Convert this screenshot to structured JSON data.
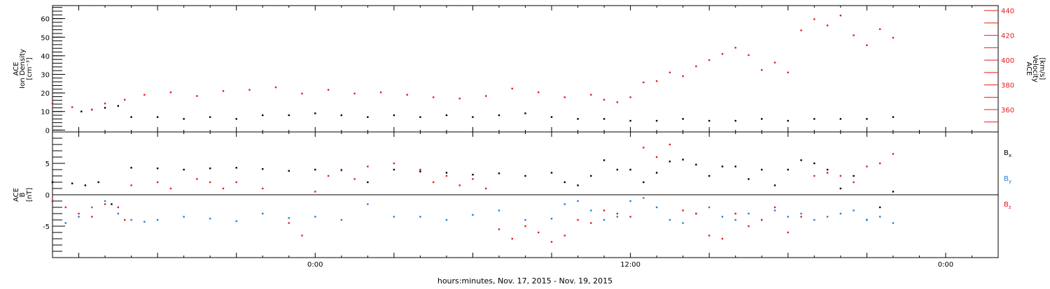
{
  "xlabel": "hours:minutes, Nov. 17, 2015 - Nov. 19, 2015",
  "chart_data": [
    {
      "type": "scatter",
      "panel": "top",
      "ylabel_left": [
        "ACE",
        "Ion Density",
        "[cm⁻³]"
      ],
      "ylabel_right": [
        "ACE",
        "Velocity",
        "[km/s]"
      ],
      "x_range_hours": [
        -20,
        52
      ],
      "x_ticks": [
        {
          "hour": 0,
          "label": "0:00"
        },
        {
          "hour": 24,
          "label": "12:00"
        },
        {
          "hour": 48,
          "label": "0:00"
        }
      ],
      "ylim_left": [
        -1,
        67
      ],
      "yticks_left": [
        0,
        10,
        20,
        30,
        40,
        50,
        60
      ],
      "ylim_right": [
        342,
        444
      ],
      "yticks_right": [
        360,
        380,
        400,
        420,
        440
      ],
      "series": [
        {
          "axis": "left",
          "color": "#000000",
          "x": [
            -17.8,
            -17.0,
            -16.0,
            -15.0,
            -14.0,
            -12.0,
            -10.0,
            -8.0,
            -6.0,
            -4.0,
            -2.0,
            0.0,
            2.0,
            4.0,
            6.0,
            8.0,
            10.0,
            12.0,
            14.0,
            16.0,
            18.0,
            20.0,
            22.0,
            24.0,
            26.0,
            28.0,
            30.0,
            32.0,
            34.0,
            36.0,
            38.0,
            40.0,
            42.0,
            44.0
          ],
          "y": [
            10,
            11,
            12,
            13,
            7,
            7,
            6,
            7,
            6,
            8,
            8,
            9,
            8,
            7,
            8,
            7,
            8,
            7,
            8,
            9,
            7,
            6,
            6,
            5,
            5,
            6,
            5,
            5,
            6,
            5,
            6,
            6,
            6,
            7
          ]
        },
        {
          "axis": "right",
          "color": "#e8191b",
          "x": [
            -20.0,
            -18.5,
            -17.0,
            -16.0,
            -14.5,
            -13.0,
            -11.0,
            -9.0,
            -7.0,
            -5.0,
            -3.0,
            -1.0,
            1.0,
            3.0,
            5.0,
            7.0,
            9.0,
            11.0,
            13.0,
            15.0,
            17.0,
            19.0,
            21.0,
            22.0,
            23.0,
            24.0,
            25.0,
            26.0,
            27.0,
            28.0,
            29.0,
            30.0,
            31.0,
            32.0,
            33.0,
            34.0,
            35.0,
            36.0,
            37.0,
            38.0,
            39.0,
            40.0,
            41.0,
            42.0,
            43.0,
            44.0
          ],
          "y": [
            365,
            362,
            360,
            365,
            368,
            372,
            374,
            371,
            375,
            376,
            378,
            373,
            376,
            373,
            374,
            372,
            370,
            369,
            371,
            377,
            374,
            370,
            372,
            368,
            366,
            370,
            382,
            383,
            390,
            387,
            395,
            400,
            405,
            410,
            404,
            392,
            398,
            390,
            424,
            433,
            428,
            436,
            420,
            412,
            425,
            418
          ]
        }
      ]
    },
    {
      "type": "scatter",
      "panel": "bottom",
      "ylabel_left": [
        "ACE",
        "B",
        "[nT]"
      ],
      "x_range_hours": [
        -20,
        52
      ],
      "x_ticks": [
        {
          "hour": 0,
          "label": "0:00"
        },
        {
          "hour": 24,
          "label": "12:00"
        },
        {
          "hour": 48,
          "label": "0:00"
        }
      ],
      "ylim_left": [
        -10,
        10
      ],
      "yticks_left": [
        -5,
        0,
        5
      ],
      "legend_placement": "right",
      "series": [
        {
          "name": "B",
          "sub": "x",
          "color": "#000000",
          "x": [
            -20.0,
            -18.5,
            -17.5,
            -16.5,
            -15.5,
            -14.0,
            -12.0,
            -10.0,
            -8.0,
            -6.0,
            -4.0,
            -2.0,
            0.0,
            2.0,
            4.0,
            6.0,
            8.0,
            10.0,
            12.0,
            14.0,
            16.0,
            18.0,
            19.0,
            20.0,
            21.0,
            22.0,
            23.0,
            24.0,
            25.0,
            26.0,
            27.0,
            28.0,
            29.0,
            30.0,
            31.0,
            32.0,
            33.0,
            34.0,
            35.0,
            36.0,
            37.0,
            38.0,
            39.0,
            40.0,
            41.0,
            42.0,
            43.0,
            44.0
          ],
          "y": [
            2.0,
            1.8,
            1.5,
            2.0,
            -1.5,
            4.3,
            4.2,
            4.0,
            4.2,
            4.3,
            4.1,
            3.8,
            4.0,
            3.9,
            2.0,
            4.0,
            3.7,
            3.5,
            3.2,
            3.4,
            3.0,
            3.5,
            2.0,
            1.5,
            3.0,
            5.5,
            4.0,
            4.0,
            2.0,
            3.5,
            5.3,
            5.6,
            4.8,
            3.0,
            4.5,
            4.5,
            2.5,
            4.0,
            1.5,
            4.0,
            5.5,
            5.0,
            4.0,
            1.0,
            3.0,
            -4.0,
            -2.0,
            0.5
          ]
        },
        {
          "name": "B",
          "sub": "y",
          "color": "#1f7fd6",
          "x": [
            -20.0,
            -19.0,
            -18.0,
            -17.0,
            -16.0,
            -15.0,
            -14.0,
            -13.0,
            -12.0,
            -10.0,
            -8.0,
            -6.0,
            -4.0,
            -2.0,
            0.0,
            2.0,
            4.0,
            6.0,
            8.0,
            10.0,
            12.0,
            14.0,
            16.0,
            18.0,
            19.0,
            20.0,
            21.0,
            22.0,
            23.0,
            24.0,
            25.0,
            26.0,
            27.0,
            28.0,
            29.0,
            30.0,
            31.0,
            32.0,
            33.0,
            34.0,
            35.0,
            36.0,
            37.0,
            38.0,
            39.0,
            40.0,
            41.0,
            42.0,
            43.0,
            44.0
          ],
          "y": [
            -1.0,
            -4.5,
            -3.5,
            -2.0,
            -1.0,
            -3.0,
            -4.0,
            -4.3,
            -4.0,
            -3.5,
            -3.8,
            -4.2,
            -3.0,
            -3.7,
            -3.5,
            -4.0,
            -1.5,
            -3.5,
            -3.5,
            -4.0,
            -3.2,
            -2.5,
            -4.0,
            -3.8,
            -1.5,
            -1.0,
            -2.5,
            -4.0,
            -3.5,
            -1.0,
            -0.5,
            -2.0,
            -4.0,
            -4.5,
            -3.0,
            -2.0,
            -3.5,
            -4.0,
            -3.0,
            -4.0,
            -2.5,
            -3.5,
            -3.0,
            -4.0,
            -3.5,
            -3.0,
            -2.5,
            -4.0,
            -3.5,
            -4.5
          ]
        },
        {
          "name": "B",
          "sub": "z",
          "color": "#e8191b",
          "x": [
            -20.0,
            -19.0,
            -18.0,
            -17.0,
            -16.0,
            -15.0,
            -14.5,
            -14.0,
            -12.0,
            -11.0,
            -9.0,
            -8.0,
            -7.0,
            -6.0,
            -4.0,
            -2.0,
            -1.0,
            0.0,
            1.0,
            2.0,
            3.0,
            4.0,
            6.0,
            8.0,
            9.0,
            10.0,
            11.0,
            12.0,
            13.0,
            14.0,
            15.0,
            16.0,
            17.0,
            18.0,
            19.0,
            20.0,
            21.0,
            22.0,
            23.0,
            24.0,
            25.0,
            26.0,
            27.0,
            28.0,
            29.0,
            30.0,
            31.0,
            32.0,
            33.0,
            34.0,
            35.0,
            36.0,
            37.0,
            38.0,
            39.0,
            40.0,
            41.0,
            42.0,
            43.0,
            44.0
          ],
          "y": [
            -1.0,
            -2.0,
            -3.0,
            -3.5,
            -1.5,
            -2.0,
            -4.0,
            1.5,
            2.0,
            1.0,
            2.5,
            2.0,
            1.0,
            2.0,
            1.0,
            -4.5,
            -6.5,
            0.5,
            3.0,
            4.0,
            2.5,
            4.5,
            5.0,
            4.0,
            2.0,
            3.0,
            1.5,
            2.5,
            1.0,
            -5.5,
            -7.0,
            -5.0,
            -6.0,
            -7.5,
            -6.5,
            -4.0,
            -4.5,
            -2.5,
            -3.0,
            -3.5,
            7.5,
            6.0,
            8.0,
            -2.5,
            -3.0,
            -6.5,
            -7.0,
            -3.0,
            -5.0,
            -4.0,
            -2.0,
            -6.0,
            -3.5,
            3.0,
            3.5,
            3.0,
            2.0,
            4.5,
            5.0,
            6.5
          ]
        }
      ]
    }
  ]
}
